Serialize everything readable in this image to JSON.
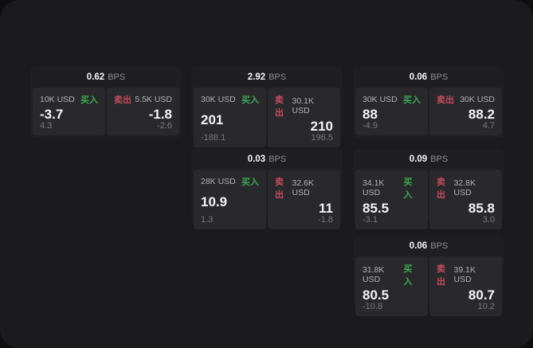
{
  "colors": {
    "page_bg": "#0e0e10",
    "panel_bg": "#1b1b1d",
    "card_bg": "#1f1f22",
    "tile_bg": "#29292c",
    "buy_green": "#3ba953",
    "sell_red": "#c24b5e",
    "label_gray": "#b2b2b5",
    "muted_gray": "#7a7a7e",
    "value_white": "#f4f4f5",
    "bps_gray": "#8d8d91"
  },
  "labels": {
    "bps": "BPS",
    "buy": "买入",
    "sell": "卖出"
  },
  "cards": [
    {
      "bps": "0.62",
      "buy": {
        "size": "10K USD",
        "price": "-3.7",
        "delta": "4.3"
      },
      "sell": {
        "size": "5.5K USD",
        "price": "-1.8",
        "delta": "-2.6"
      }
    },
    {
      "bps": "2.92",
      "buy": {
        "size": "30K USD",
        "price": "201",
        "delta": "-188.1"
      },
      "sell": {
        "size": "30.1K USD",
        "price": "210",
        "delta": "196.5"
      }
    },
    {
      "bps": "0.06",
      "buy": {
        "size": "30K USD",
        "price": "88",
        "delta": "-4.9"
      },
      "sell": {
        "size": "30K USD",
        "price": "88.2",
        "delta": "4.7"
      }
    },
    {
      "bps": "0.03",
      "buy": {
        "size": "28K USD",
        "price": "10.9",
        "delta": "1.3"
      },
      "sell": {
        "size": "32.6K USD",
        "price": "11",
        "delta": "-1.8"
      }
    },
    {
      "bps": "0.09",
      "buy": {
        "size": "34.1K USD",
        "price": "85.5",
        "delta": "-3.1"
      },
      "sell": {
        "size": "32.8K USD",
        "price": "85.8",
        "delta": "3.0"
      }
    },
    {
      "bps": "0.06",
      "buy": {
        "size": "31.8K USD",
        "price": "80.5",
        "delta": "-10.8"
      },
      "sell": {
        "size": "39.1K USD",
        "price": "80.7",
        "delta": "10.2"
      }
    }
  ]
}
